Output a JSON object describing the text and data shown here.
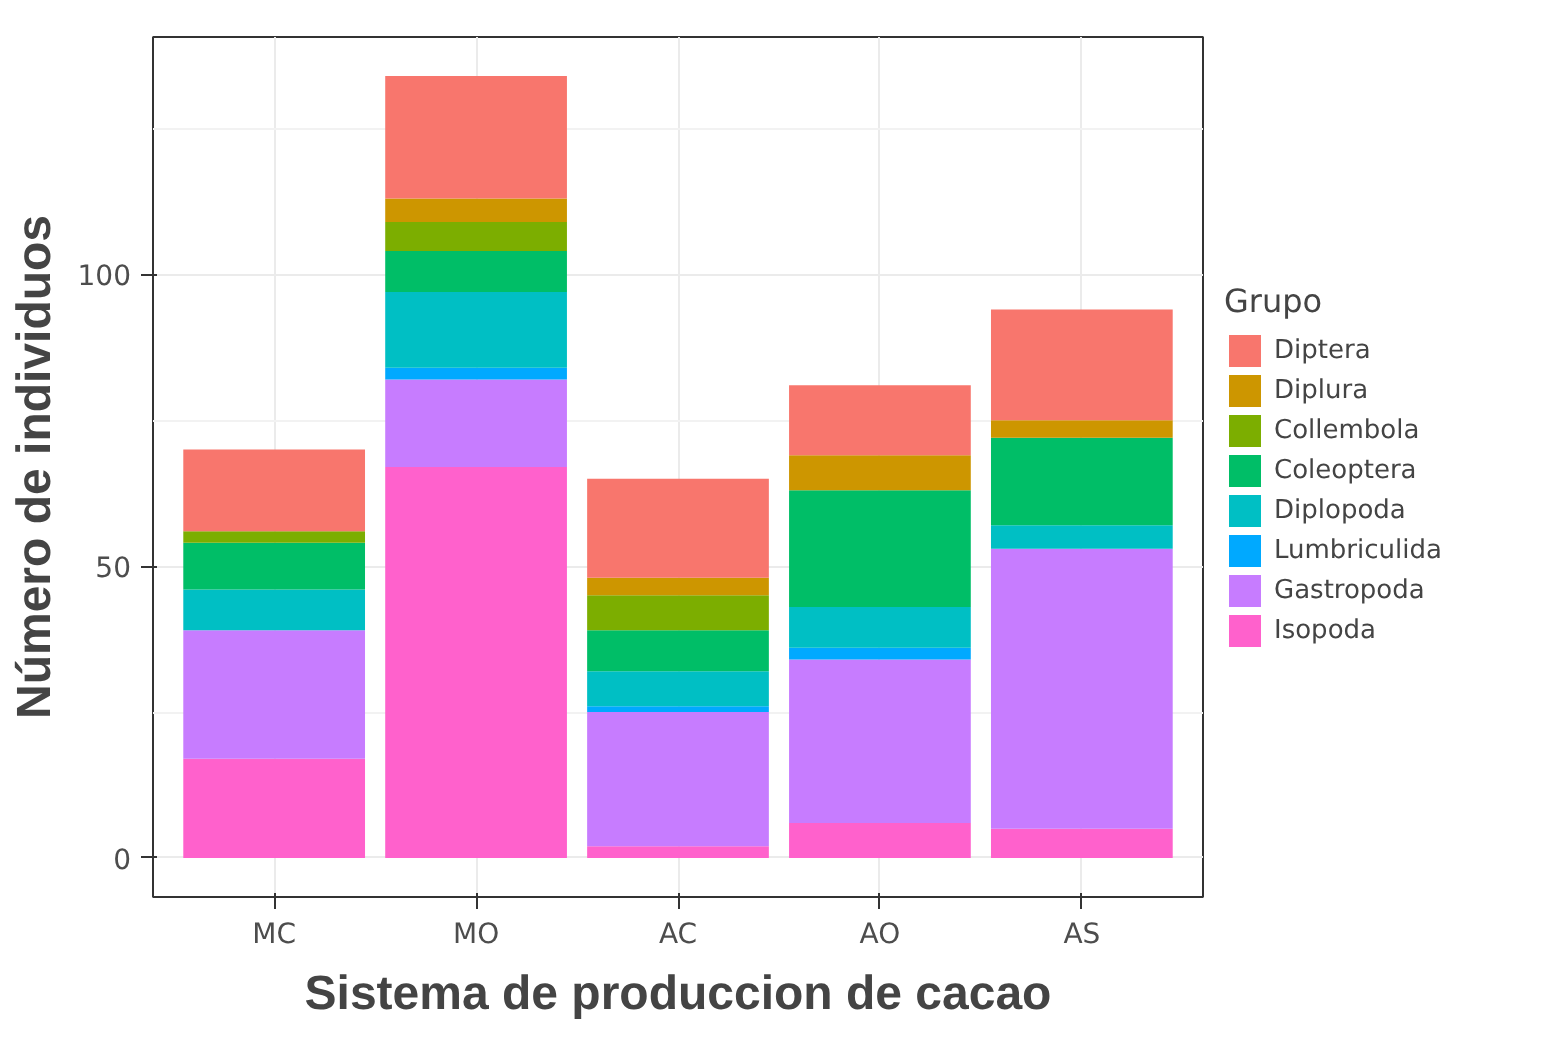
{
  "chart_data": {
    "type": "bar",
    "stacked": true,
    "xlabel": "Sistema de produccion de cacao",
    "ylabel": "Número de individuos",
    "legend_title": "Grupo",
    "categories": [
      "MC",
      "MO",
      "AC",
      "AO",
      "AS"
    ],
    "series": [
      {
        "name": "Isopoda",
        "color": "#ff61cc",
        "values": [
          17,
          67,
          2,
          6,
          5
        ]
      },
      {
        "name": "Gastropoda",
        "color": "#c77cff",
        "values": [
          22,
          15,
          23,
          28,
          48
        ]
      },
      {
        "name": "Lumbriculida",
        "color": "#00a9ff",
        "values": [
          0,
          2,
          1,
          2,
          0
        ]
      },
      {
        "name": "Diplopoda",
        "color": "#00bfc4",
        "values": [
          7,
          13,
          6,
          7,
          4
        ]
      },
      {
        "name": "Coleoptera",
        "color": "#00be67",
        "values": [
          8,
          7,
          7,
          20,
          15
        ]
      },
      {
        "name": "Collembola",
        "color": "#7cae00",
        "values": [
          2,
          5,
          6,
          0,
          0
        ]
      },
      {
        "name": "Diplura",
        "color": "#cd9600",
        "values": [
          0,
          4,
          3,
          6,
          3
        ]
      },
      {
        "name": "Diptera",
        "color": "#f8766d",
        "values": [
          14,
          21,
          17,
          12,
          19
        ]
      }
    ],
    "ylim": [
      -6.7,
      140.7
    ],
    "yticks": [
      0,
      50,
      100
    ],
    "grid": true,
    "legend": "right"
  }
}
